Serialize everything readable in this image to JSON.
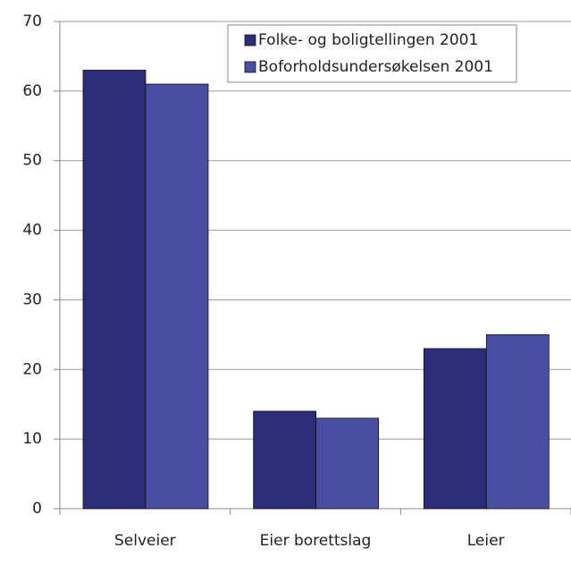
{
  "chart_data": {
    "type": "bar",
    "categories": [
      "Selveier",
      "Eier borettslag",
      "Leier"
    ],
    "series": [
      {
        "name": "Folke- og boligtellingen 2001",
        "color": "#2b2d78",
        "values": [
          63,
          14,
          23
        ]
      },
      {
        "name": "Boforholdsundersøkelsen 2001",
        "color": "#4a4ea2",
        "values": [
          61,
          13,
          25
        ]
      }
    ],
    "ylim": [
      0,
      70
    ],
    "yticks": [
      0,
      10,
      20,
      30,
      40,
      50,
      60,
      70
    ],
    "grid": true,
    "legend": "top-right"
  }
}
